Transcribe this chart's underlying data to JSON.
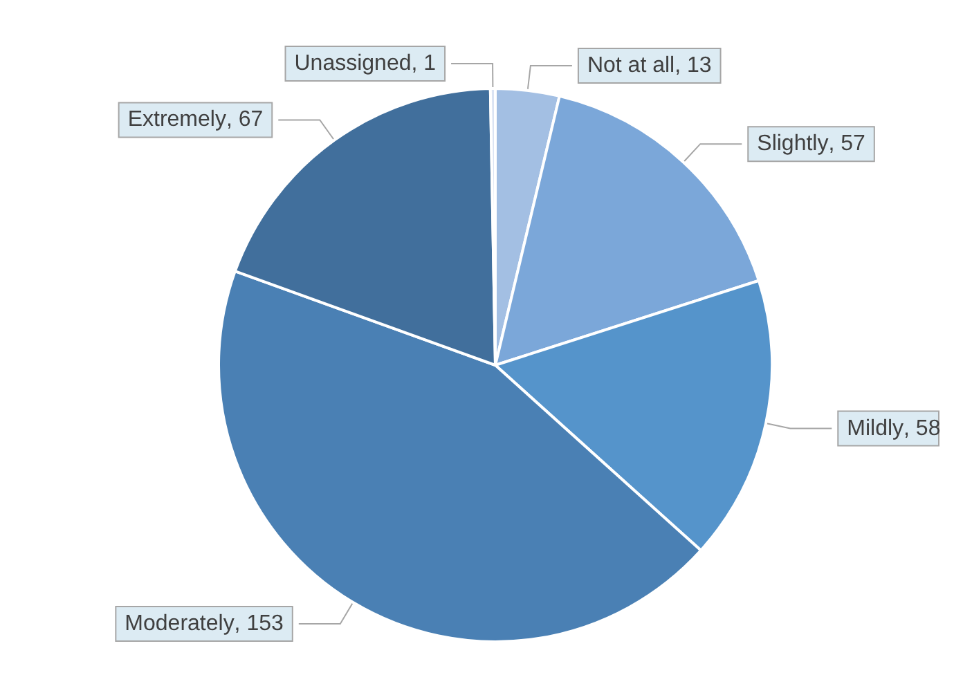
{
  "chart_data": {
    "type": "pie",
    "categories": [
      "Not at all",
      "Slightly",
      "Mildly",
      "Moderately",
      "Extremely",
      "Unassigned"
    ],
    "values": [
      13,
      57,
      58,
      153,
      67,
      1
    ],
    "value_labels": [
      ", 13",
      ", 57",
      ", 58",
      ", 153",
      ", 67",
      ", 1"
    ],
    "colors": [
      "#a3bfe3",
      "#7ba7d9",
      "#5594cb",
      "#4a80b4",
      "#416f9c",
      "#dae3f3"
    ],
    "legend": false
  }
}
